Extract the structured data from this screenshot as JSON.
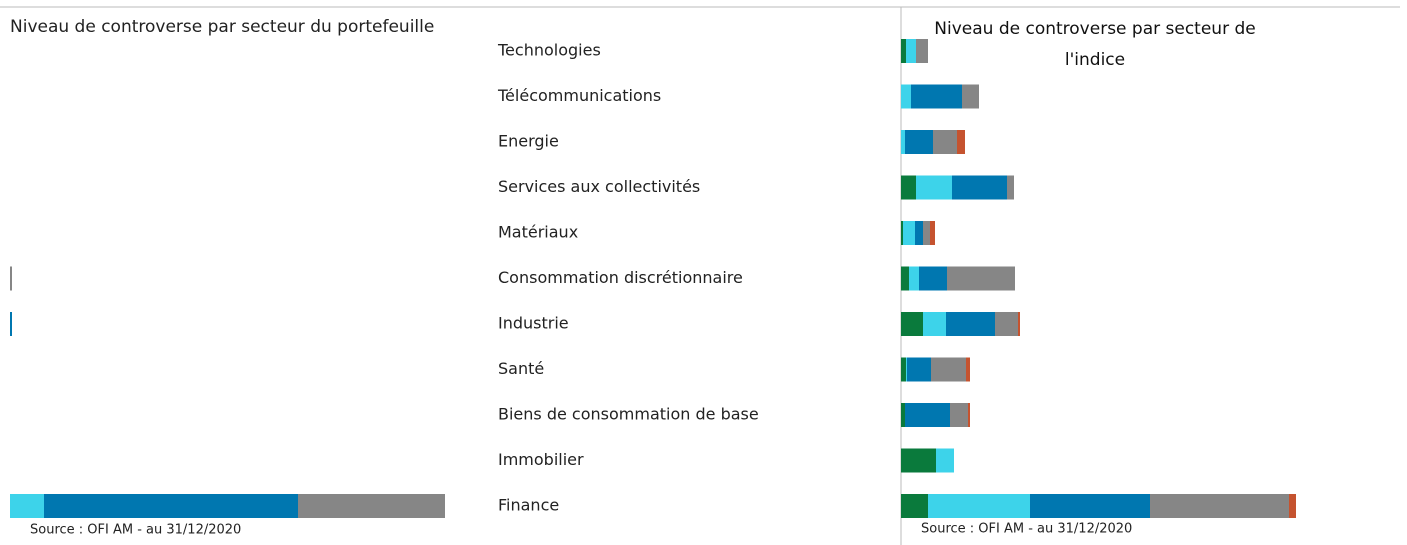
{
  "chart_data": [
    {
      "type": "bar",
      "orientation": "horizontal",
      "stacked": true,
      "title": "Niveau de controverse par secteur du portefeuille",
      "source": "Source : OFI AM - au 31/12/2020",
      "categories": [
        "Technologies",
        "Télécommunications",
        "Energie",
        "Services aux collectivités",
        "Matériaux",
        "Consommation discrétionnaire",
        "Industrie",
        "Santé",
        "Biens de consommation de base",
        "Immobilier",
        "Finance"
      ],
      "xlim": [
        0,
        500
      ],
      "series": [
        {
          "color": "#0a7a3c",
          "values": [
            0,
            0,
            0,
            0,
            0,
            0,
            0,
            0,
            0,
            0,
            0
          ]
        },
        {
          "color": "#3dd3ea",
          "values": [
            0,
            0,
            0,
            0,
            0,
            0,
            0,
            0,
            0,
            0,
            34
          ]
        },
        {
          "color": "#0077b0",
          "values": [
            0,
            0,
            0,
            0,
            0,
            0,
            2,
            0,
            0,
            0,
            254
          ]
        },
        {
          "color": "#868686",
          "values": [
            0,
            0,
            0,
            0,
            0,
            2,
            0,
            0,
            0,
            0,
            147
          ]
        },
        {
          "color": "#c5532f",
          "values": [
            0,
            0,
            0,
            0,
            0,
            0,
            0,
            0,
            0,
            0,
            0
          ]
        }
      ]
    },
    {
      "type": "bar",
      "orientation": "horizontal",
      "stacked": true,
      "title": "Niveau de controverse par secteur de l'indice",
      "source": "Source : OFI AM - au 31/12/2020",
      "xlim": [
        0,
        500
      ],
      "series": [
        {
          "color": "#0a7a3c",
          "values": [
            5,
            0,
            0,
            15,
            2,
            8,
            22,
            5,
            4,
            35,
            27
          ]
        },
        {
          "color": "#3dd3ea",
          "values": [
            10,
            10,
            4,
            36,
            12,
            10,
            23,
            1,
            0,
            18,
            102
          ]
        },
        {
          "color": "#0077b0",
          "values": [
            0,
            51,
            28,
            55,
            8,
            28,
            49,
            24,
            45,
            0,
            120
          ]
        },
        {
          "color": "#868686",
          "values": [
            12,
            17,
            24,
            7,
            7,
            68,
            23,
            35,
            18,
            0,
            139
          ]
        },
        {
          "color": "#c5532f",
          "values": [
            0,
            0,
            8,
            0,
            5,
            0,
            2,
            4,
            2,
            0,
            7
          ]
        }
      ]
    }
  ]
}
